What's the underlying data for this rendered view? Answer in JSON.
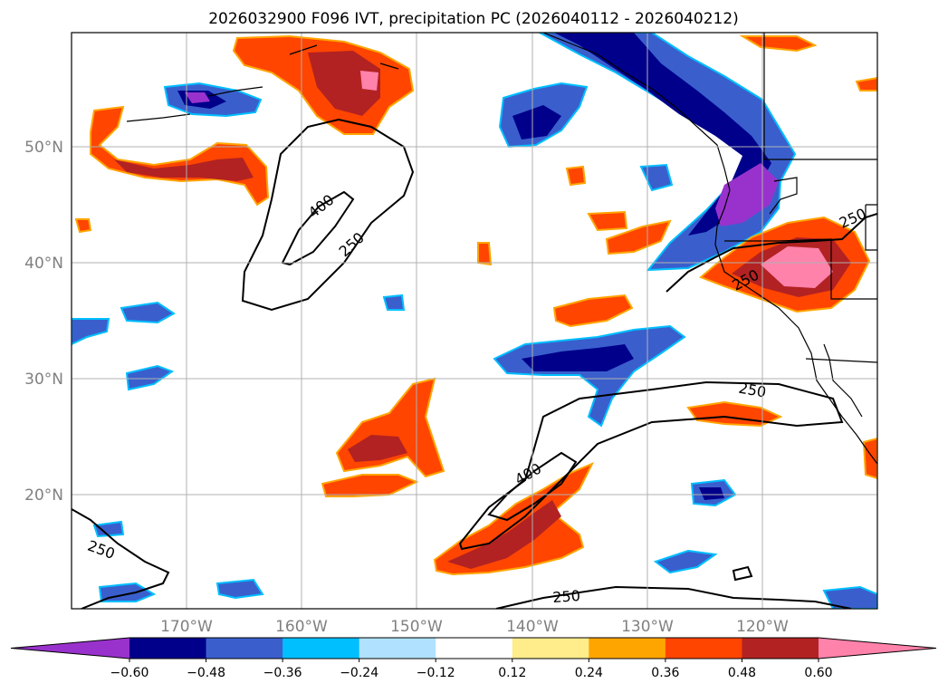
{
  "title": "2026032900 F096 IVT, precipitation PC (2026040112 - 2026040212)",
  "map": {
    "lon_labels": [
      "170°W",
      "160°W",
      "150°W",
      "140°W",
      "130°W",
      "120°W"
    ],
    "lat_labels": [
      "50°N",
      "40°N",
      "30°N",
      "20°N"
    ],
    "contour_labels": [
      "400",
      "250",
      "250",
      "250",
      "400",
      "250",
      "250",
      "250"
    ]
  },
  "colorbar": {
    "colors": [
      "#9932cc",
      "#00008b",
      "#3a5fcd",
      "#00bfff",
      "#b0e2ff",
      "#ffffff",
      "#ffec8b",
      "#ffa500",
      "#ff4500",
      "#b22222",
      "#ff82ab"
    ],
    "tick_labels": [
      "−0.60",
      "−0.48",
      "−0.36",
      "−0.24",
      "−0.12",
      "0.12",
      "0.24",
      "0.36",
      "0.48",
      "0.60"
    ]
  }
}
